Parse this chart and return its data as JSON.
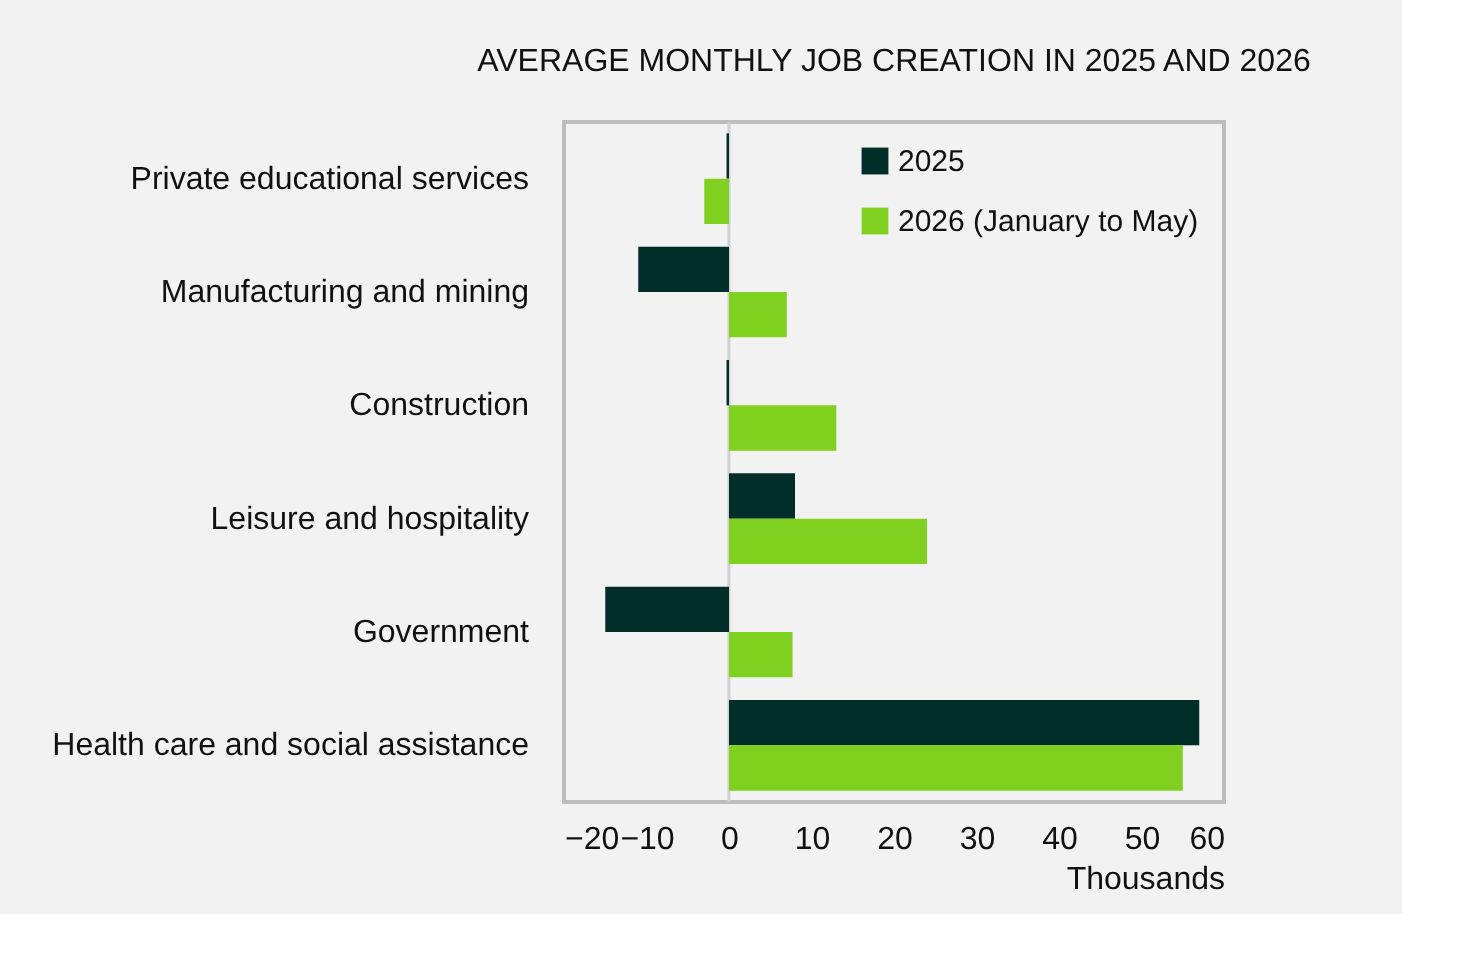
{
  "chart_data": {
    "type": "bar",
    "orientation": "horizontal",
    "title": "AVERAGE MONTHLY JOB CREATION IN 2025 AND 2026",
    "xlabel": "Thousands",
    "categories": [
      "Private educational services",
      "Manufacturing and mining",
      "Construction",
      "Leisure and hospitality",
      "Government",
      "Health care and social assistance"
    ],
    "series": [
      {
        "name": "2025",
        "color": "#022e29",
        "values": [
          -0.3,
          -11,
          -0.3,
          8,
          -15,
          57
        ]
      },
      {
        "name": "2026 (January to May)",
        "color": "#80d11f",
        "values": [
          -3,
          7,
          13,
          24,
          7.7,
          55
        ]
      }
    ],
    "xlim": [
      -20,
      60
    ],
    "xticks": [
      -20,
      -10,
      0,
      10,
      20,
      30,
      40,
      50,
      60
    ],
    "grid": false,
    "legend": "top right",
    "ref_lines": [
      {
        "axis": "x",
        "value": 0,
        "color": "#d0d0d0"
      }
    ]
  }
}
